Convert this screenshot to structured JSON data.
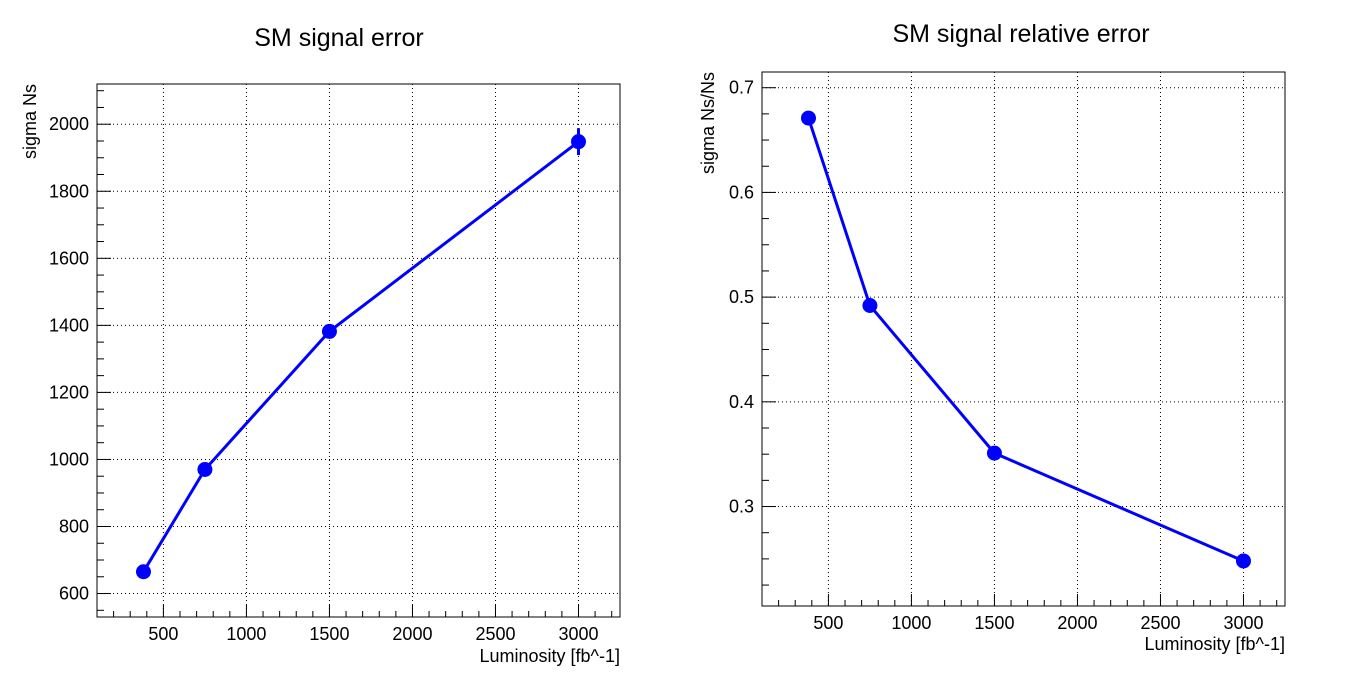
{
  "chart_data": [
    {
      "type": "line",
      "title": "SM signal error",
      "xlabel": "Luminosity [fb^-1]",
      "ylabel": "sigma Ns",
      "xlim": [
        100,
        3250
      ],
      "ylim": [
        530,
        2120
      ],
      "xticks": [
        500,
        1000,
        1500,
        2000,
        2500,
        3000
      ],
      "yticks": [
        600,
        800,
        1000,
        1200,
        1400,
        1600,
        1800,
        2000
      ],
      "grid": true,
      "series": [
        {
          "color": "#0000ff",
          "x": [
            380,
            750,
            1500,
            3000
          ],
          "y": [
            665,
            970,
            1382,
            1948
          ],
          "yerr": [
            10,
            12,
            18,
            40
          ]
        }
      ]
    },
    {
      "type": "line",
      "title": "SM signal relative error",
      "xlabel": "Luminosity [fb^-1]",
      "ylabel": "sigma Ns/Ns",
      "xlim": [
        100,
        3250
      ],
      "ylim": [
        0.205,
        0.715
      ],
      "xticks": [
        500,
        1000,
        1500,
        2000,
        2500,
        3000
      ],
      "yticks": [
        0.3,
        0.4,
        0.5,
        0.6,
        0.7
      ],
      "grid": true,
      "series": [
        {
          "color": "#0000ff",
          "x": [
            380,
            750,
            1500,
            3000
          ],
          "y": [
            0.671,
            0.492,
            0.351,
            0.248
          ],
          "yerr": [
            0.004,
            0.003,
            0.002,
            0.002
          ]
        }
      ]
    }
  ]
}
